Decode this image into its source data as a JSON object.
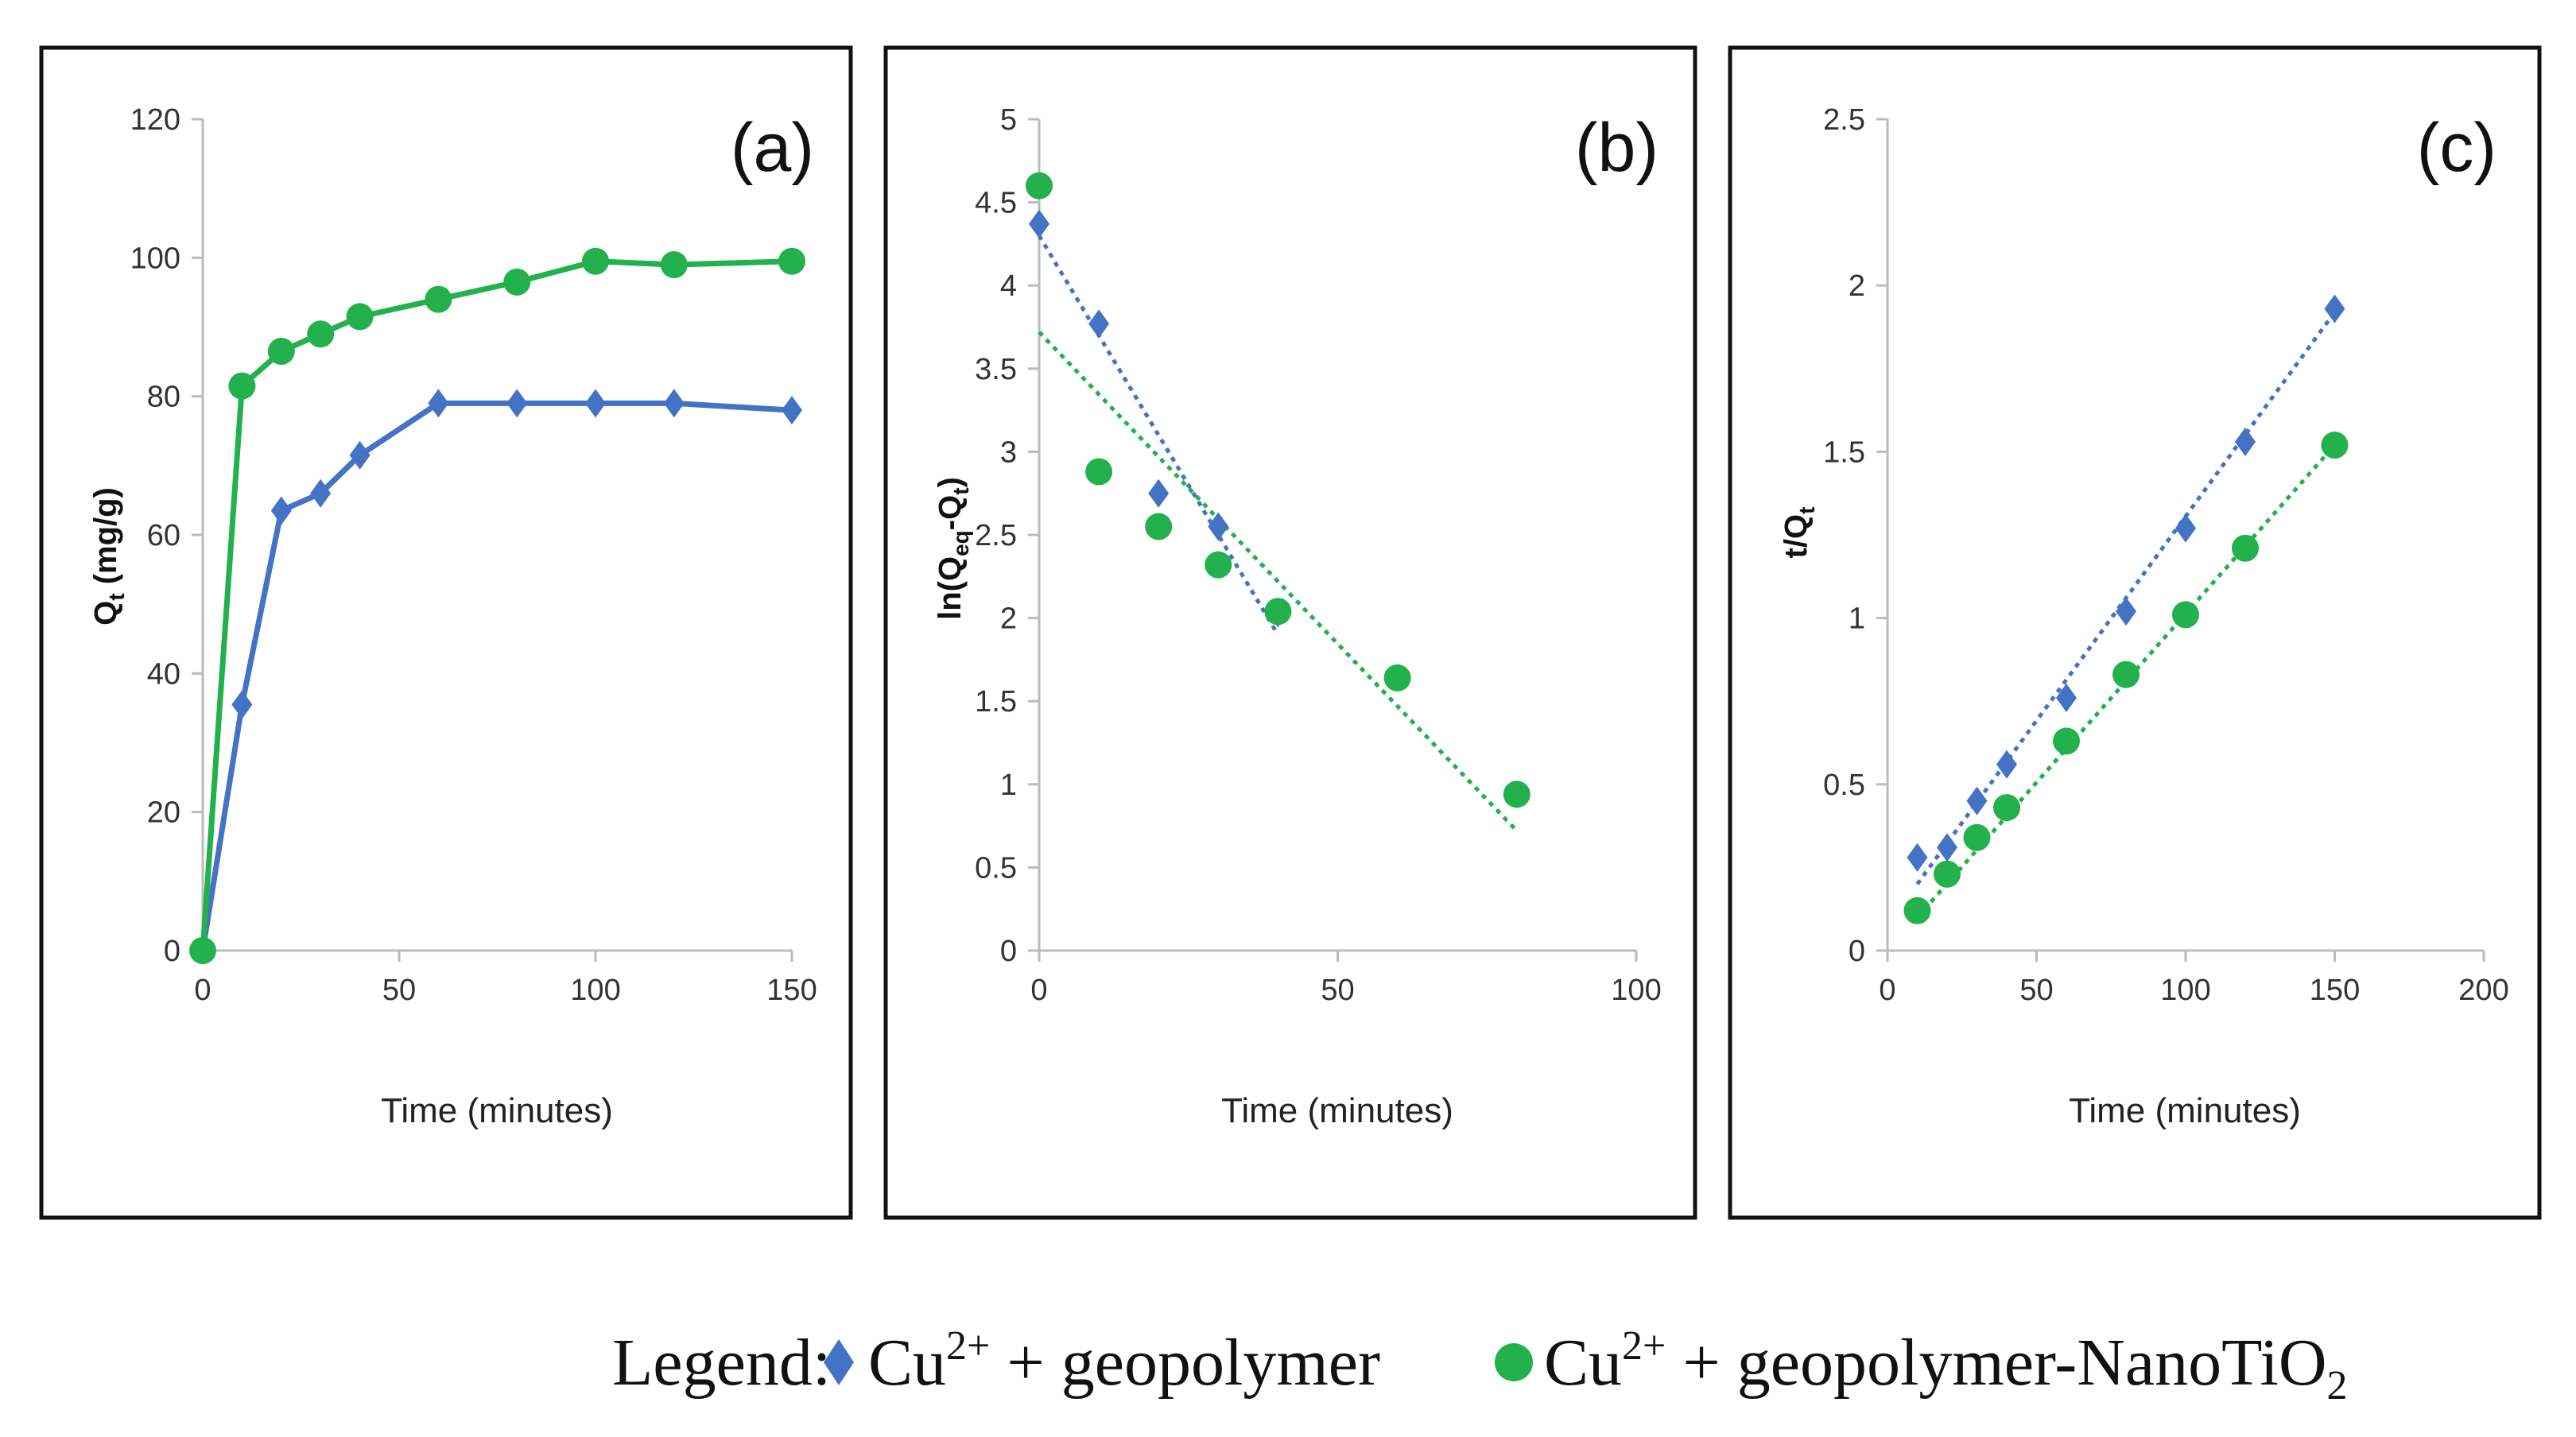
{
  "legend": {
    "title": "Legend:",
    "items": [
      {
        "label": "Cu",
        "sup": "2+",
        "rest": " + geopolymer",
        "sub": "",
        "marker": "diamond",
        "color": "#4472C4"
      },
      {
        "label": "Cu",
        "sup": "2+",
        "rest": " + geopolymer-NanoTiO",
        "sub": "2",
        "marker": "circle",
        "color": "#22B14C"
      }
    ]
  },
  "chart_data": [
    {
      "panel": "(a)",
      "type": "line",
      "xlabel": "Time (minutes)",
      "ylabel": "Qt (mg/g)",
      "xlim": [
        0,
        150
      ],
      "ylim": [
        0,
        120
      ],
      "xticks": [
        0,
        50,
        100,
        150
      ],
      "yticks": [
        0,
        20,
        40,
        60,
        80,
        100,
        120
      ],
      "series": [
        {
          "name": "Cu2+ + geopolymer",
          "marker": "diamond",
          "color": "#4472C4",
          "line": "solid",
          "x": [
            0,
            10,
            20,
            30,
            40,
            60,
            80,
            100,
            120,
            150
          ],
          "y": [
            0,
            35.5,
            63.5,
            66,
            71.5,
            79,
            79,
            79,
            79,
            78
          ]
        },
        {
          "name": "Cu2+ + geopolymer-NanoTiO2",
          "marker": "circle",
          "color": "#22B14C",
          "line": "solid",
          "x": [
            0,
            10,
            20,
            30,
            40,
            60,
            80,
            100,
            120,
            150
          ],
          "y": [
            0,
            81.5,
            86.5,
            89,
            91.5,
            94,
            96.5,
            99.5,
            99,
            99.5
          ]
        }
      ]
    },
    {
      "panel": "(b)",
      "type": "scatter",
      "xlabel": "Time (minutes)",
      "ylabel": "ln(Qeq-Qt)",
      "xlim": [
        0,
        100
      ],
      "ylim": [
        0,
        5
      ],
      "xticks": [
        0,
        50,
        100
      ],
      "yticks": [
        0,
        0.5,
        1,
        1.5,
        2,
        2.5,
        3,
        3.5,
        4,
        4.5,
        5
      ],
      "series": [
        {
          "name": "Cu2+ + geopolymer",
          "marker": "diamond",
          "color": "#4472C4",
          "x": [
            0,
            10,
            20,
            30,
            40
          ],
          "y": [
            4.37,
            3.77,
            2.75,
            2.55,
            2.03
          ],
          "trend": {
            "x": [
              0,
              40
            ],
            "y": [
              4.3,
              1.9
            ]
          }
        },
        {
          "name": "Cu2+ + geopolymer-NanoTiO2",
          "marker": "circle",
          "color": "#22B14C",
          "x": [
            0,
            10,
            20,
            30,
            40,
            60,
            80
          ],
          "y": [
            4.6,
            2.88,
            2.55,
            2.32,
            2.04,
            1.64,
            0.94
          ],
          "trend": {
            "x": [
              0,
              80
            ],
            "y": [
              3.72,
              0.72
            ]
          }
        }
      ]
    },
    {
      "panel": "(c)",
      "type": "scatter",
      "xlabel": "Time (minutes)",
      "ylabel": "t/Qt",
      "xlim": [
        0,
        200
      ],
      "ylim": [
        0,
        2.5
      ],
      "xticks": [
        0,
        50,
        100,
        150,
        200
      ],
      "yticks": [
        0,
        0.5,
        1,
        1.5,
        2,
        2.5
      ],
      "series": [
        {
          "name": "Cu2+ + geopolymer",
          "marker": "diamond",
          "color": "#4472C4",
          "x": [
            10,
            20,
            30,
            40,
            60,
            80,
            100,
            120,
            150
          ],
          "y": [
            0.28,
            0.31,
            0.45,
            0.56,
            0.76,
            1.02,
            1.27,
            1.53,
            1.93
          ],
          "trend": {
            "x": [
              10,
              150
            ],
            "y": [
              0.2,
              1.92
            ]
          }
        },
        {
          "name": "Cu2+ + geopolymer-NanoTiO2",
          "marker": "circle",
          "color": "#22B14C",
          "x": [
            10,
            20,
            30,
            40,
            60,
            80,
            100,
            120,
            150
          ],
          "y": [
            0.12,
            0.23,
            0.34,
            0.43,
            0.63,
            0.83,
            1.01,
            1.21,
            1.52
          ],
          "trend": {
            "x": [
              10,
              150
            ],
            "y": [
              0.1,
              1.52
            ]
          }
        }
      ]
    }
  ]
}
